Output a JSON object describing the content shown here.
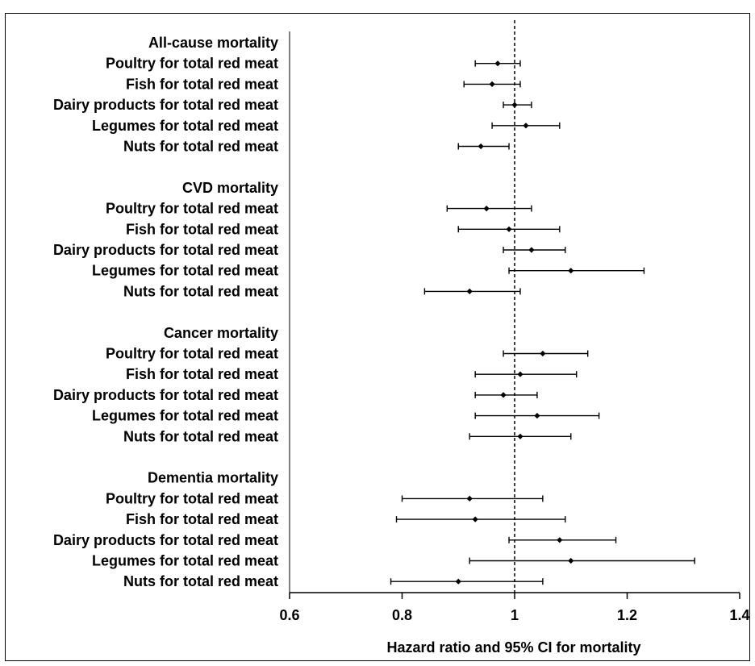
{
  "chart_data": {
    "type": "forest",
    "title": "",
    "xlabel": "Hazard ratio and 95% CI for mortality",
    "ylabel": "",
    "xlim": [
      0.6,
      1.4
    ],
    "xticks": [
      "0.6",
      "0.8",
      "1",
      "1.2",
      "1.4"
    ],
    "reference_line": 1,
    "groups": [
      {
        "name": "All-cause mortality",
        "rows": [
          {
            "label": "Poultry for total red meat",
            "hr": 0.97,
            "lo": 0.93,
            "hi": 1.01
          },
          {
            "label": "Fish for total red meat",
            "hr": 0.96,
            "lo": 0.91,
            "hi": 1.01
          },
          {
            "label": "Dairy products for total red meat",
            "hr": 1.0,
            "lo": 0.98,
            "hi": 1.03
          },
          {
            "label": "Legumes for total red meat",
            "hr": 1.02,
            "lo": 0.96,
            "hi": 1.08
          },
          {
            "label": "Nuts for total red meat",
            "hr": 0.94,
            "lo": 0.9,
            "hi": 0.99
          }
        ]
      },
      {
        "name": "CVD mortality",
        "rows": [
          {
            "label": "Poultry for total red meat",
            "hr": 0.95,
            "lo": 0.88,
            "hi": 1.03
          },
          {
            "label": "Fish for total red meat",
            "hr": 0.99,
            "lo": 0.9,
            "hi": 1.08
          },
          {
            "label": "Dairy products for total red meat",
            "hr": 1.03,
            "lo": 0.98,
            "hi": 1.09
          },
          {
            "label": "Legumes for total red meat",
            "hr": 1.1,
            "lo": 0.99,
            "hi": 1.23
          },
          {
            "label": "Nuts for total red meat",
            "hr": 0.92,
            "lo": 0.84,
            "hi": 1.01
          }
        ]
      },
      {
        "name": "Cancer mortality",
        "rows": [
          {
            "label": "Poultry for total red meat",
            "hr": 1.05,
            "lo": 0.98,
            "hi": 1.13
          },
          {
            "label": "Fish for total red meat",
            "hr": 1.01,
            "lo": 0.93,
            "hi": 1.11
          },
          {
            "label": "Dairy products for total red meat",
            "hr": 0.98,
            "lo": 0.93,
            "hi": 1.04
          },
          {
            "label": "Legumes for total red meat",
            "hr": 1.04,
            "lo": 0.93,
            "hi": 1.15
          },
          {
            "label": "Nuts for total red meat",
            "hr": 1.01,
            "lo": 0.92,
            "hi": 1.1
          }
        ]
      },
      {
        "name": "Dementia mortality",
        "rows": [
          {
            "label": "Poultry for total red meat",
            "hr": 0.92,
            "lo": 0.8,
            "hi": 1.05
          },
          {
            "label": "Fish for total red meat",
            "hr": 0.93,
            "lo": 0.79,
            "hi": 1.09
          },
          {
            "label": "Dairy products for total red meat",
            "hr": 1.08,
            "lo": 0.99,
            "hi": 1.18
          },
          {
            "label": "Legumes for total red meat",
            "hr": 1.1,
            "lo": 0.92,
            "hi": 1.32
          },
          {
            "label": "Nuts for total red meat",
            "hr": 0.9,
            "lo": 0.78,
            "hi": 1.05
          }
        ]
      }
    ]
  }
}
